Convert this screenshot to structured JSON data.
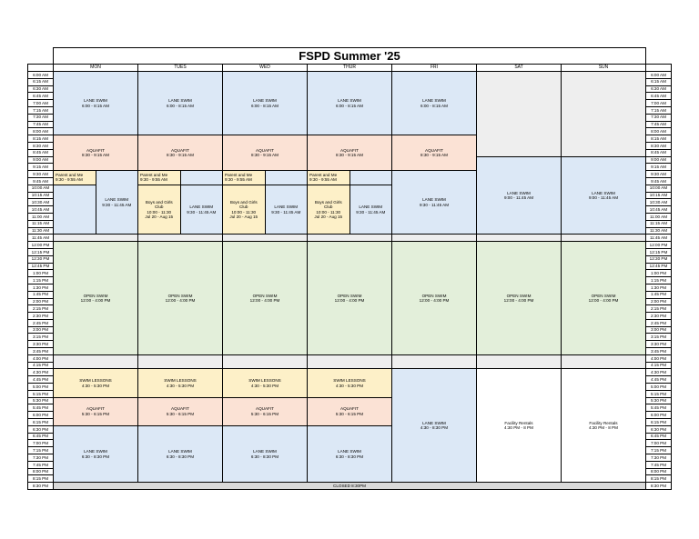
{
  "title": "FSPD Summer '25",
  "days": [
    "MON",
    "TUES",
    "WED",
    "THUR",
    "FRI",
    "SAT",
    "SUN"
  ],
  "times": [
    "6:00 AM",
    "6:15 AM",
    "6:30 AM",
    "6:45 AM",
    "7:00 AM",
    "7:15 AM",
    "7:30 AM",
    "7:45 AM",
    "8:00 AM",
    "8:15 AM",
    "8:30 AM",
    "8:45 AM",
    "9:00 AM",
    "9:15 AM",
    "9:30 AM",
    "9:45 AM",
    "10:00 AM",
    "10:15 AM",
    "10:30 AM",
    "10:45 AM",
    "11:00 AM",
    "11:15 AM",
    "11:30 AM",
    "11:45 AM",
    "12:00 PM",
    "12:15 PM",
    "12:30 PM",
    "12:45 PM",
    "1:00 PM",
    "1:15 PM",
    "1:30 PM",
    "1:45 PM",
    "2:00 PM",
    "2:15 PM",
    "2:30 PM",
    "2:45 PM",
    "3:00 PM",
    "3:15 PM",
    "3:30 PM",
    "3:45 PM",
    "4:00 PM",
    "4:15 PM",
    "4:30 PM",
    "4:45 PM",
    "5:00 PM",
    "5:15 PM",
    "5:30 PM",
    "5:45 PM",
    "6:00 PM",
    "6:15 PM",
    "6:30 PM",
    "6:45 PM",
    "7:00 PM",
    "7:15 PM",
    "7:30 PM",
    "7:45 PM",
    "8:00 PM",
    "8:15 PM",
    "8:30 PM"
  ],
  "colors": {
    "lane_swim": "#dce8f6",
    "aquafit": "#fbe2d5",
    "youth": "#fdf0c8",
    "open_swim": "#e3efda",
    "closed": "#d9d9d9",
    "gap": "#eeeeee"
  },
  "blocks": {
    "weekday_lane_am": {
      "label": "LANE SWIM",
      "time": "6:00 - 8:15 AM"
    },
    "weekday_aquafit_am": {
      "label": "AQUAFIT",
      "time": "8:30 - 9:15 AM"
    },
    "parent_me": {
      "label": "Parent and Me",
      "time": "9:30 - 9:55 AM"
    },
    "boys_girls": {
      "line1": "Boys and Girls",
      "line2": "Club",
      "time": "10:00 - 11:30",
      "dates": "Jul 20 - Aug 15"
    },
    "lane_mid": {
      "label": "LANE SWIM",
      "time": "9:30 - 11:45 AM"
    },
    "weekend_lane": {
      "label": "LANE SWIM",
      "time": "9:00 - 11:45 AM"
    },
    "open_swim": {
      "label": "OPEN SWIM",
      "time": "12:00 - 4:00 PM"
    },
    "swim_lessons": {
      "label": "SWIM LESSONS",
      "time": "4:30 - 5:30 PM"
    },
    "aquafit_pm": {
      "label": "AQUAFIT",
      "time": "5:30 - 6:15 PM"
    },
    "lane_pm": {
      "label": "LANE SWIM",
      "time": "6:30 - 8:30 PM"
    },
    "fri_lane_pm": {
      "label": "LANE SWIM",
      "time": "4:30 - 8:30 PM"
    },
    "facility": {
      "label": "Facility Rentals",
      "time": "4:30 PM - 8 PM"
    },
    "closed": "CLOSED 8:30PM"
  }
}
